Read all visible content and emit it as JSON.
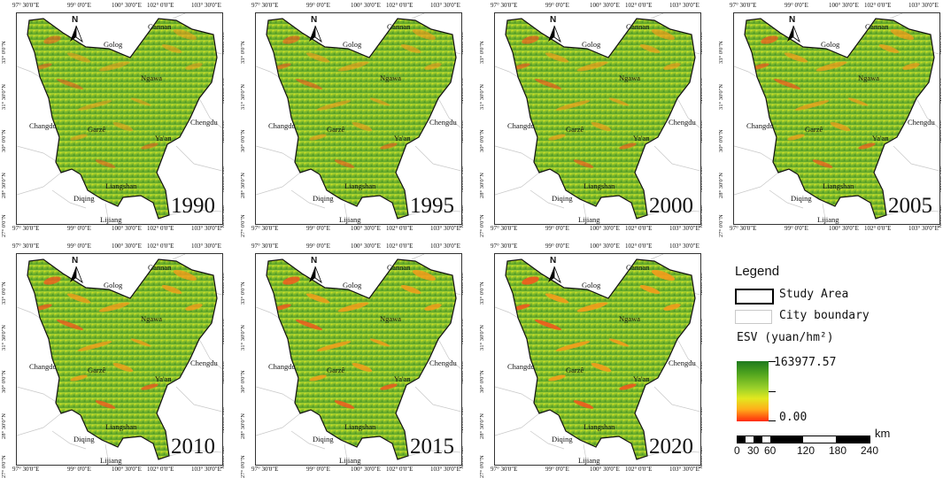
{
  "ticks": {
    "lon": [
      "97° 30'0\"E",
      "99° 0'0\"E",
      "100° 30'0\"E",
      "102° 0'0\"E",
      "103° 30'0\"E"
    ],
    "lat": [
      "33° 0'0\"N",
      "31° 30'0\"N",
      "30° 0'0\"N",
      "28° 30'0\"N",
      "27° 0'0\"N"
    ]
  },
  "places": {
    "north": "N",
    "gannan": "Gannan",
    "golog": "Golog",
    "ngawa": "Ngawa",
    "chengdu": "Chengdu",
    "changdu": "Changdu",
    "garze": "Garzê",
    "yaan": "Ya'an",
    "liangshan": "Liangshan",
    "diqing": "Diqing",
    "lijiang": "Lijiang"
  },
  "maps": [
    {
      "year": "1990"
    },
    {
      "year": "1995"
    },
    {
      "year": "2000"
    },
    {
      "year": "2005"
    },
    {
      "year": "2010"
    },
    {
      "year": "2015"
    },
    {
      "year": "2020"
    }
  ],
  "legend": {
    "title": "Legend",
    "study_area": "Study Area",
    "city_boundary": "City boundary",
    "esv_label": "ESV (yuan/hm²)",
    "max_value": "163977.57",
    "min_value": "0.00",
    "ramp_colors": [
      "#1f7a1f",
      "#9bd12a",
      "#e2e81f",
      "#ff2a0c"
    ],
    "scale_labels": [
      "0",
      "30",
      "60",
      "120",
      "180",
      "240"
    ],
    "scale_unit": "km"
  }
}
